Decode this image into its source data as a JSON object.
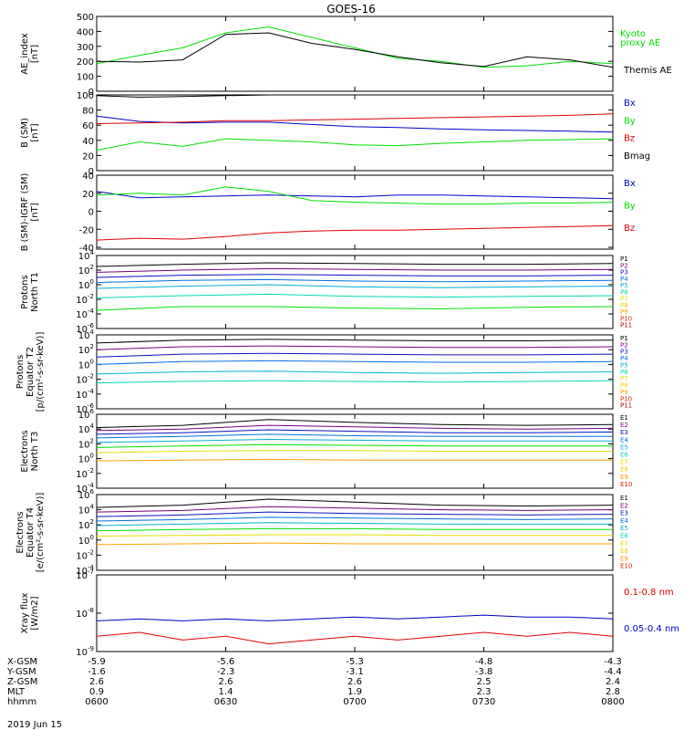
{
  "title": "GOES-16",
  "date_label": "2019 Jun 15",
  "colors": {
    "black": "#000000",
    "red": "#e00000",
    "green": "#00e000",
    "blue": "#0000c8",
    "P1": "#000000",
    "P2": "#7a0080",
    "P3": "#1010c0",
    "P4": "#0070e0",
    "P5": "#00b0d0",
    "P6": "#00d8b0",
    "P7": "#e0e000",
    "P8": "#f0d000",
    "P9": "#ffa000",
    "P10": "#e02000",
    "P11": "#b00000"
  },
  "ephemeris": {
    "labels": [
      "X-GSM",
      "Y-GSM",
      "Z-GSM",
      "MLT",
      "hhmm"
    ],
    "ticks": [
      {
        "values": [
          "-5.9",
          "-1.6",
          "2.6",
          "0.9",
          "0600"
        ]
      },
      {
        "values": [
          "-5.6",
          "-2.3",
          "2.6",
          "1.4",
          "0630"
        ]
      },
      {
        "values": [
          "-5.3",
          "-3.1",
          "2.6",
          "1.9",
          "0700"
        ]
      },
      {
        "values": [
          "-4.8",
          "-3.8",
          "2.5",
          "2.3",
          "0730"
        ]
      },
      {
        "values": [
          "-4.3",
          "-4.4",
          "2.4",
          "2.8",
          "0800"
        ]
      }
    ]
  },
  "chart_data": [
    {
      "type": "line",
      "ylabel": [
        "AE_index",
        "[nT]"
      ],
      "ylim": [
        0,
        500
      ],
      "yticks": [
        "0",
        "100",
        "200",
        "300",
        "400",
        "500"
      ],
      "legend": [
        "Kyoto",
        "proxy AE",
        "Themis AE"
      ],
      "x": [
        0,
        10,
        20,
        30,
        40,
        50,
        60,
        70,
        80,
        90,
        100,
        110,
        120
      ],
      "series": [
        {
          "name": "Kyoto proxy AE",
          "color": "green",
          "values": [
            185,
            240,
            290,
            390,
            430,
            360,
            290,
            220,
            200,
            160,
            170,
            200,
            185
          ]
        },
        {
          "name": "Themis AE",
          "color": "black",
          "values": [
            200,
            195,
            210,
            380,
            390,
            320,
            280,
            230,
            190,
            165,
            230,
            210,
            160
          ]
        }
      ]
    },
    {
      "type": "line",
      "ylabel": [
        "B (SM)",
        "[nT]"
      ],
      "ylim": [
        0,
        100
      ],
      "yticks": [
        "0",
        "20",
        "40",
        "60",
        "80",
        "100"
      ],
      "legend": [
        "Bx",
        "By",
        "Bz",
        "Bmag"
      ],
      "x": [
        0,
        10,
        20,
        30,
        40,
        50,
        60,
        70,
        80,
        90,
        100,
        110,
        120
      ],
      "series": [
        {
          "name": "Bx",
          "color": "blue",
          "values": [
            72,
            65,
            63,
            64,
            64,
            61,
            58,
            57,
            55,
            54,
            53,
            52,
            51
          ]
        },
        {
          "name": "By",
          "color": "green",
          "values": [
            27,
            38,
            32,
            42,
            40,
            38,
            34,
            33,
            36,
            38,
            40,
            41,
            42
          ]
        },
        {
          "name": "Bz",
          "color": "red",
          "values": [
            62,
            63,
            64,
            66,
            66,
            67,
            68,
            69,
            70,
            71,
            72,
            73,
            75
          ]
        },
        {
          "name": "Bmag",
          "color": "black",
          "values": [
            99,
            97,
            98,
            99,
            100,
            100,
            100,
            100,
            100,
            100,
            100,
            100,
            100
          ]
        }
      ]
    },
    {
      "type": "line",
      "ylabel": [
        "B (SM)-IGRF (SM)",
        "[nT]"
      ],
      "ylim": [
        -42,
        40
      ],
      "yticks": [
        "-40",
        "-20",
        "0",
        "20",
        "40"
      ],
      "legend": [
        "Bx",
        "By",
        "Bz"
      ],
      "x": [
        0,
        10,
        20,
        30,
        40,
        50,
        60,
        70,
        80,
        90,
        100,
        110,
        120
      ],
      "series": [
        {
          "name": "Bx",
          "color": "blue",
          "values": [
            22,
            15,
            16,
            17,
            18,
            17,
            16,
            18,
            18,
            17,
            16,
            15,
            14
          ]
        },
        {
          "name": "By",
          "color": "green",
          "values": [
            18,
            20,
            18,
            27,
            22,
            12,
            10,
            9,
            8,
            8,
            9,
            9,
            10
          ]
        },
        {
          "name": "Bz",
          "color": "red",
          "values": [
            -32,
            -30,
            -31,
            -28,
            -24,
            -22,
            -21,
            -21,
            -20,
            -19,
            -18,
            -17,
            -16
          ]
        }
      ]
    },
    {
      "type": "line",
      "scale": "log",
      "ylabel": [
        "Protons",
        "North T1"
      ],
      "ylim": [
        -6,
        4
      ],
      "yticks": [
        "10^4",
        "10^2",
        "10^0",
        "10^-2",
        "10^-4",
        "10^-6"
      ],
      "legend": [
        "P1",
        "P2",
        "P3",
        "P4",
        "P5",
        "P6",
        "P7",
        "P8",
        "P9",
        "P10",
        "P11"
      ],
      "x": [
        0,
        20,
        40,
        60,
        80,
        100,
        120
      ],
      "series": [
        {
          "name": "P1",
          "color": "P1",
          "values": [
            2.5,
            2.8,
            3.0,
            2.9,
            2.8,
            2.8,
            2.9
          ]
        },
        {
          "name": "P2",
          "color": "P2",
          "values": [
            1.7,
            2.0,
            2.2,
            2.1,
            2.0,
            2.0,
            2.1
          ]
        },
        {
          "name": "P3",
          "color": "P3",
          "values": [
            1.0,
            1.3,
            1.4,
            1.3,
            1.2,
            1.2,
            1.3
          ]
        },
        {
          "name": "P4",
          "color": "P4",
          "values": [
            0.3,
            0.6,
            0.7,
            0.5,
            0.4,
            0.5,
            0.6
          ]
        },
        {
          "name": "P5",
          "color": "P5",
          "values": [
            -0.5,
            -0.2,
            0.0,
            -0.3,
            -0.4,
            -0.3,
            -0.2
          ]
        },
        {
          "name": "P6",
          "color": "P6",
          "values": [
            -1.8,
            -1.5,
            -1.3,
            -1.6,
            -1.7,
            -1.6,
            -1.5
          ]
        },
        {
          "name": "P7",
          "color": "green",
          "values": [
            -3.5,
            -3.0,
            -3.0,
            -3.2,
            -3.3,
            -3.1,
            -3.0
          ]
        }
      ]
    },
    {
      "type": "line",
      "scale": "log",
      "ylabel": [
        "Protons",
        "Equator T2",
        "[p/(cm²-s-sr-keV)]"
      ],
      "ylim": [
        -6,
        4
      ],
      "yticks": [
        "10^4",
        "10^2",
        "10^0",
        "10^-2",
        "10^-4",
        "10^-6"
      ],
      "legend": [
        "P1",
        "P2",
        "P3",
        "P4",
        "P5",
        "P6",
        "P7",
        "P8",
        "P9",
        "P10",
        "P11"
      ],
      "x": [
        0,
        20,
        40,
        60,
        80,
        100,
        120
      ],
      "series": [
        {
          "name": "P1",
          "color": "P1",
          "values": [
            2.9,
            3.3,
            3.4,
            3.3,
            3.2,
            3.2,
            3.3
          ]
        },
        {
          "name": "P2",
          "color": "P2",
          "values": [
            2.0,
            2.4,
            2.5,
            2.4,
            2.3,
            2.3,
            2.4
          ]
        },
        {
          "name": "P3",
          "color": "P3",
          "values": [
            1.0,
            1.4,
            1.5,
            1.4,
            1.3,
            1.3,
            1.4
          ]
        },
        {
          "name": "P4",
          "color": "P4",
          "values": [
            0.0,
            0.4,
            0.5,
            0.4,
            0.3,
            0.3,
            0.4
          ]
        },
        {
          "name": "P5",
          "color": "P5",
          "values": [
            -1.3,
            -1.0,
            -0.9,
            -1.1,
            -1.2,
            -1.1,
            -1.0
          ]
        },
        {
          "name": "P6",
          "color": "P6",
          "values": [
            -2.5,
            -2.3,
            -2.2,
            -2.3,
            -2.4,
            -2.3,
            -2.2
          ]
        }
      ]
    },
    {
      "type": "line",
      "scale": "log",
      "ylabel": [
        "Electrons",
        "North T3"
      ],
      "ylim": [
        -4,
        6
      ],
      "yticks": [
        "10^6",
        "10^4",
        "10^2",
        "10^0",
        "10^-2",
        "10^-4"
      ],
      "legend": [
        "E1",
        "E2",
        "E3",
        "E4",
        "E5",
        "E6",
        "E7",
        "E8",
        "E9",
        "E10"
      ],
      "x": [
        0,
        20,
        40,
        60,
        80,
        100,
        120
      ],
      "series": [
        {
          "name": "E1",
          "color": "P1",
          "values": [
            4.2,
            4.5,
            5.3,
            4.9,
            4.6,
            4.5,
            4.6
          ]
        },
        {
          "name": "E2",
          "color": "P2",
          "values": [
            3.8,
            4.0,
            4.5,
            4.3,
            4.1,
            4.0,
            4.1
          ]
        },
        {
          "name": "E3",
          "color": "P3",
          "values": [
            3.3,
            3.5,
            3.9,
            3.7,
            3.5,
            3.5,
            3.6
          ]
        },
        {
          "name": "E4",
          "color": "P4",
          "values": [
            2.8,
            3.0,
            3.3,
            3.1,
            3.0,
            3.0,
            3.0
          ]
        },
        {
          "name": "E5",
          "color": "P5",
          "values": [
            2.2,
            2.4,
            2.6,
            2.5,
            2.4,
            2.4,
            2.4
          ]
        },
        {
          "name": "E6",
          "color": "green",
          "values": [
            1.5,
            1.7,
            1.9,
            1.8,
            1.7,
            1.7,
            1.7
          ]
        },
        {
          "name": "E7",
          "color": "P7",
          "values": [
            0.8,
            1.0,
            1.1,
            1.1,
            1.0,
            1.0,
            1.0
          ]
        },
        {
          "name": "E8",
          "color": "P9",
          "values": [
            -0.3,
            -0.2,
            -0.1,
            -0.2,
            -0.2,
            -0.2,
            -0.2
          ]
        }
      ]
    },
    {
      "type": "line",
      "scale": "log",
      "ylabel": [
        "Electrons",
        "Equator T4",
        "[e/(cm²-s-sr-keV)]"
      ],
      "ylim": [
        -4,
        6
      ],
      "yticks": [
        "10^6",
        "10^4",
        "10^2",
        "10^0",
        "10^-2",
        "10^-4"
      ],
      "legend": [
        "E1",
        "E2",
        "E3",
        "E4",
        "E5",
        "E6",
        "E7",
        "E8",
        "E9",
        "E10"
      ],
      "x": [
        0,
        20,
        40,
        60,
        80,
        100,
        120
      ],
      "series": [
        {
          "name": "E1",
          "color": "P1",
          "values": [
            4.3,
            4.6,
            5.4,
            5.0,
            4.6,
            4.5,
            4.6
          ]
        },
        {
          "name": "E2",
          "color": "P2",
          "values": [
            3.7,
            3.9,
            4.4,
            4.2,
            4.0,
            3.9,
            4.0
          ]
        },
        {
          "name": "E3",
          "color": "P3",
          "values": [
            3.1,
            3.3,
            3.7,
            3.5,
            3.4,
            3.3,
            3.4
          ]
        },
        {
          "name": "E4",
          "color": "P4",
          "values": [
            2.5,
            2.7,
            3.0,
            2.9,
            2.8,
            2.7,
            2.8
          ]
        },
        {
          "name": "E5",
          "color": "P5",
          "values": [
            1.9,
            2.1,
            2.3,
            2.2,
            2.1,
            2.1,
            2.1
          ]
        },
        {
          "name": "E6",
          "color": "green",
          "values": [
            1.2,
            1.4,
            1.5,
            1.5,
            1.4,
            1.4,
            1.4
          ]
        },
        {
          "name": "E7",
          "color": "P7",
          "values": [
            0.5,
            0.6,
            0.7,
            0.7,
            0.6,
            0.6,
            0.6
          ]
        },
        {
          "name": "E8",
          "color": "P9",
          "values": [
            -0.6,
            -0.5,
            -0.4,
            -0.5,
            -0.5,
            -0.5,
            -0.5
          ]
        }
      ]
    },
    {
      "type": "line",
      "scale": "log",
      "ylabel": [
        "Xray flux",
        "[W/m2]"
      ],
      "ylim": [
        -9,
        -7
      ],
      "yticks": [
        "10^-7",
        "10^-8",
        "10^-9"
      ],
      "legend": [
        "0.1-0.8 nm",
        "0.05-0.4 nm"
      ],
      "x": [
        0,
        10,
        20,
        30,
        40,
        50,
        60,
        70,
        80,
        90,
        100,
        110,
        120
      ],
      "series": [
        {
          "name": "0.1-0.8 nm",
          "color": "red",
          "values": [
            -8.6,
            -8.5,
            -8.7,
            -8.6,
            -8.8,
            -8.7,
            -8.6,
            -8.7,
            -8.6,
            -8.5,
            -8.6,
            -8.5,
            -8.6
          ]
        },
        {
          "name": "0.05-0.4 nm",
          "color": "blue",
          "values": [
            -8.2,
            -8.15,
            -8.2,
            -8.15,
            -8.2,
            -8.15,
            -8.1,
            -8.15,
            -8.1,
            -8.05,
            -8.1,
            -8.1,
            -8.15
          ]
        }
      ]
    }
  ]
}
